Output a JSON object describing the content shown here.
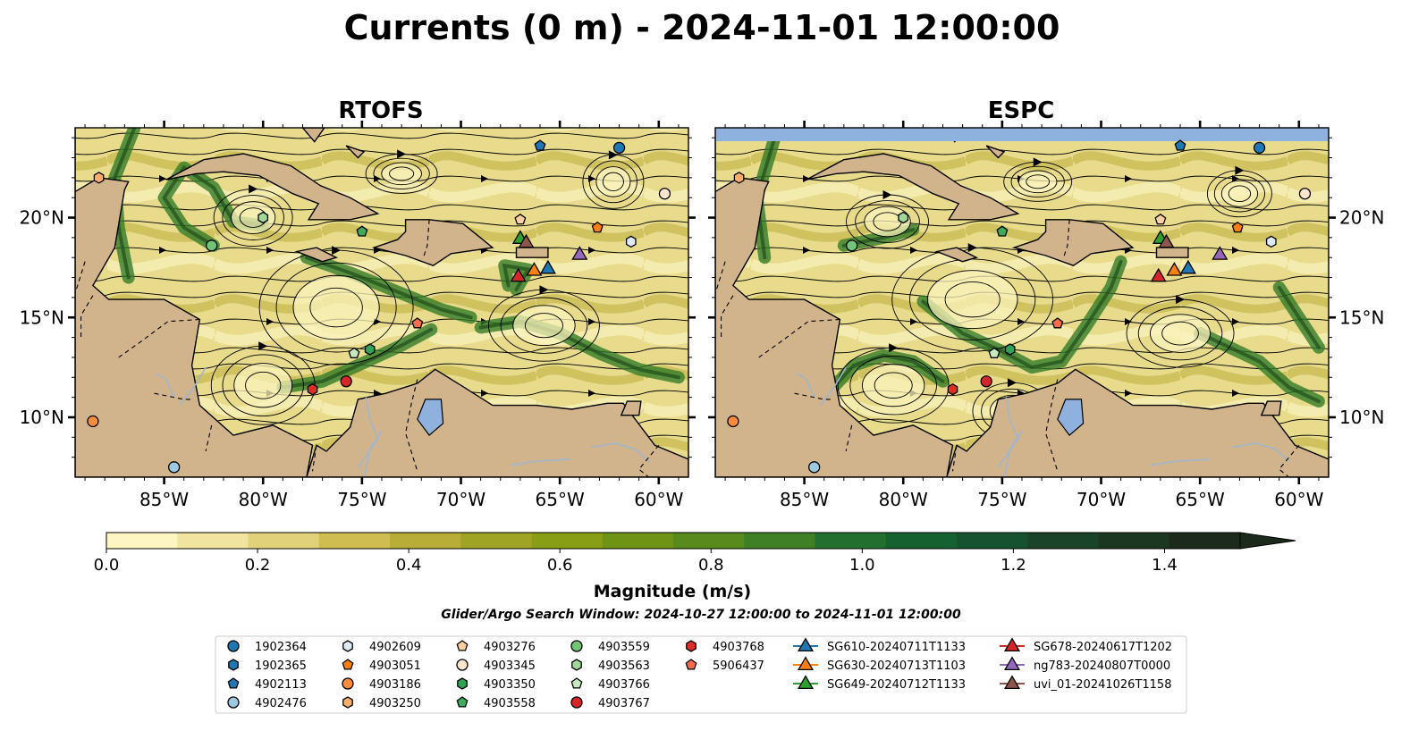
{
  "title": "Currents (0 m) - 2024-11-01 12:00:00",
  "panels": [
    {
      "title": "RTOFS",
      "top_band": false
    },
    {
      "title": "ESPC",
      "top_band": true
    }
  ],
  "axes": {
    "lon_ticks": [
      "85°W",
      "80°W",
      "75°W",
      "70°W",
      "65°W",
      "60°W"
    ],
    "lon_values": [
      -85,
      -80,
      -75,
      -70,
      -65,
      -60
    ],
    "lat_ticks": [
      "20°N",
      "15°N",
      "10°N"
    ],
    "lat_values": [
      20,
      15,
      10
    ],
    "lon_range": [
      -89.5,
      -58.5
    ],
    "lat_range": [
      7.0,
      24.5
    ]
  },
  "colorbar": {
    "label": "Magnitude (m/s)",
    "ticks": [
      "0.0",
      "0.2",
      "0.4",
      "0.6",
      "0.8",
      "1.0",
      "1.2",
      "1.4"
    ],
    "tick_values": [
      0,
      0.2,
      0.4,
      0.6,
      0.8,
      1.0,
      1.2,
      1.4
    ],
    "range": [
      0,
      1.5
    ],
    "extend": "max",
    "colors": [
      "#fdf6c3",
      "#f1e4a1",
      "#e2d17b",
      "#d0bd52",
      "#b8ad36",
      "#a0a425",
      "#889e15",
      "#6f9314",
      "#588a1e",
      "#3f7f26",
      "#236f2f",
      "#15612f",
      "#165230",
      "#1a442a",
      "#1b3722",
      "#1b2a1b"
    ]
  },
  "search_window": "Glider/Argo Search Window: 2024-10-27 12:00:00 to 2024-11-01 12:00:00",
  "colors": {
    "land": "#d2b48c",
    "coast": "#000000",
    "top_band": "#8fb1dd",
    "lake": "#8fb1dd",
    "river": "#9fb6cd"
  },
  "chart_data": {
    "type": "map",
    "legend_placement": "bottom-center",
    "markers": [
      {
        "id": "1902364",
        "shape": "circle",
        "color": "#1f77b4",
        "lon": -62.0,
        "lat": 23.5
      },
      {
        "id": "1902365",
        "shape": "hexagon",
        "color": "#1f77b4"
      },
      {
        "id": "4902113",
        "shape": "pentagon",
        "color": "#1f77b4",
        "lon": -66.0,
        "lat": 23.6
      },
      {
        "id": "4902476",
        "shape": "circle",
        "color": "#9ecae1",
        "lon": -84.5,
        "lat": 7.5
      },
      {
        "id": "4902609",
        "shape": "hexagon",
        "color": "#deebf7",
        "lon": -61.4,
        "lat": 18.8
      },
      {
        "id": "4903051",
        "shape": "pentagon",
        "color": "#ff7f0e",
        "lon": -63.1,
        "lat": 19.5
      },
      {
        "id": "4903186",
        "shape": "circle",
        "color": "#fd8d3c",
        "lon": -88.6,
        "lat": 9.8
      },
      {
        "id": "4903250",
        "shape": "hexagon",
        "color": "#fdae6b",
        "lon": -88.3,
        "lat": 22.0
      },
      {
        "id": "4903276",
        "shape": "pentagon",
        "color": "#fdd0a2",
        "lon": -67.0,
        "lat": 19.9
      },
      {
        "id": "4903345",
        "shape": "circle",
        "color": "#fee6ce",
        "lon": -59.7,
        "lat": 21.2
      },
      {
        "id": "4903350",
        "shape": "hexagon",
        "color": "#31a354",
        "lon": -74.6,
        "lat": 13.4
      },
      {
        "id": "4903558",
        "shape": "pentagon",
        "color": "#41ab5d",
        "lon": -75.0,
        "lat": 19.3
      },
      {
        "id": "4903559",
        "shape": "circle",
        "color": "#74c476",
        "lon": -82.6,
        "lat": 18.6
      },
      {
        "id": "4903563",
        "shape": "hexagon",
        "color": "#a1d99b",
        "lon": -80.0,
        "lat": 20.0
      },
      {
        "id": "4903766",
        "shape": "pentagon",
        "color": "#c7e9c0",
        "lon": -75.4,
        "lat": 13.2
      },
      {
        "id": "4903767",
        "shape": "circle",
        "color": "#d62728",
        "lon": -75.8,
        "lat": 11.8
      },
      {
        "id": "4903768",
        "shape": "hexagon",
        "color": "#de2d26",
        "lon": -77.5,
        "lat": 11.4
      },
      {
        "id": "5906437",
        "shape": "pentagon",
        "color": "#fb6a4a",
        "lon": -72.2,
        "lat": 14.7
      },
      {
        "id": "SG610-20240711T1133",
        "shape": "triangle",
        "color": "#1f77b4",
        "lon": -65.6,
        "lat": 17.5
      },
      {
        "id": "SG630-20240713T1103",
        "shape": "triangle",
        "color": "#ff7f0e",
        "lon": -66.3,
        "lat": 17.4
      },
      {
        "id": "SG649-20240712T1133",
        "shape": "triangle",
        "color": "#2ca02c",
        "lon": -67.0,
        "lat": 19.0
      },
      {
        "id": "SG678-20240617T1202",
        "shape": "triangle",
        "color": "#d62728",
        "lon": -67.1,
        "lat": 17.1
      },
      {
        "id": "ng783-20240807T0000",
        "shape": "triangle",
        "color": "#9467bd",
        "lon": -64.0,
        "lat": 18.2
      },
      {
        "id": "uvi_01-20241026T1158",
        "shape": "triangle",
        "color": "#8c564b",
        "lon": -66.7,
        "lat": 18.8
      }
    ]
  }
}
